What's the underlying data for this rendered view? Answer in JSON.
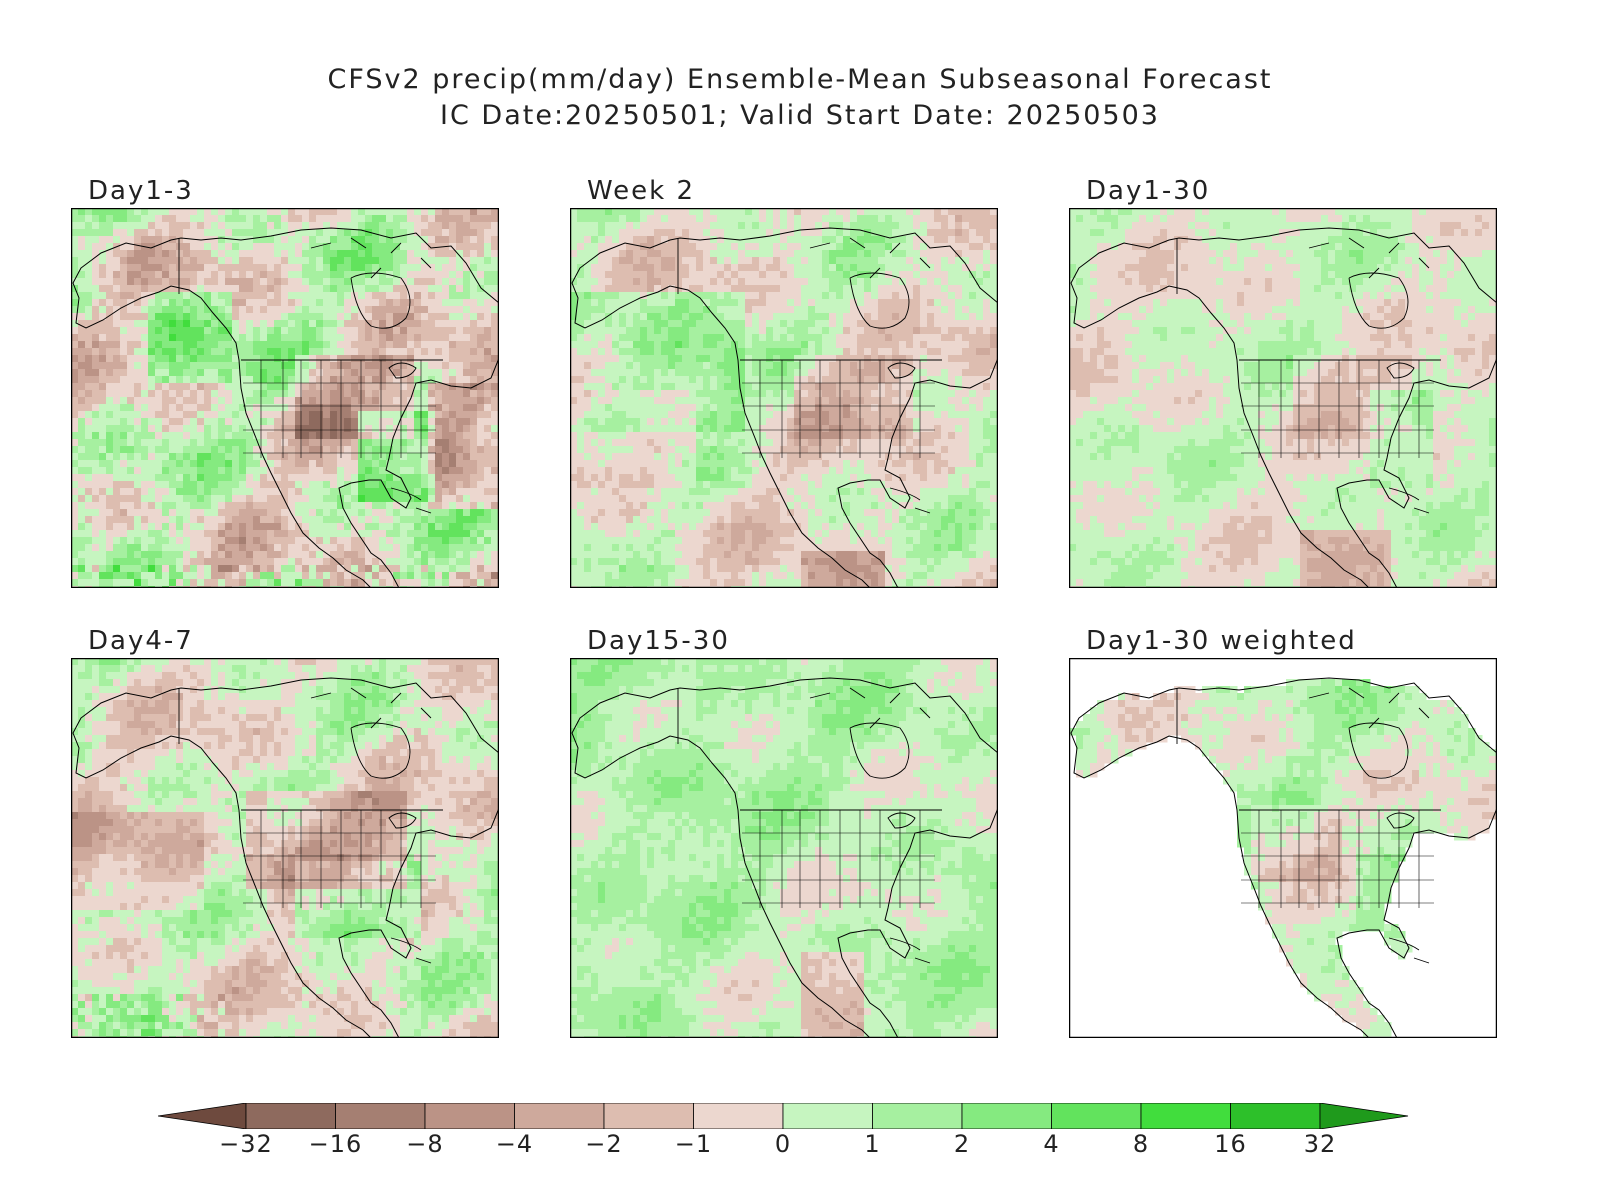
{
  "title": {
    "line1": "CFSv2 precip(mm/day) Ensemble-Mean Subseasonal Forecast",
    "line2": "IC Date:20250501; Valid Start Date: 20250503"
  },
  "panels": [
    {
      "id": "day1-3",
      "label": "Day1-3",
      "pattern": "mixed_strong"
    },
    {
      "id": "week2",
      "label": "Week 2",
      "pattern": "mixed_moderate"
    },
    {
      "id": "day1-30",
      "label": "Day1-30",
      "pattern": "mostly_dry"
    },
    {
      "id": "day4-7",
      "label": "Day4-7",
      "pattern": "dry_north_wet_south"
    },
    {
      "id": "day15-30",
      "label": "Day15-30",
      "pattern": "mostly_wet"
    },
    {
      "id": "day1-30-weighted",
      "label": "Day1-30 weighted",
      "pattern": "land_only"
    }
  ],
  "colorbar": {
    "ticks": [
      "−32",
      "−16",
      "−8",
      "−4",
      "−2",
      "−1",
      "0",
      "1",
      "2",
      "4",
      "8",
      "16",
      "32"
    ],
    "colors": [
      "#6e4a3e",
      "#8e6a5e",
      "#a57f72",
      "#bb9386",
      "#cea99c",
      "#ddbdb0",
      "#ecd7cf",
      "#c6f5c0",
      "#a6f0a0",
      "#85ea80",
      "#62e35d",
      "#41dd3d",
      "#2dc02a",
      "#1f9a1c"
    ]
  }
}
